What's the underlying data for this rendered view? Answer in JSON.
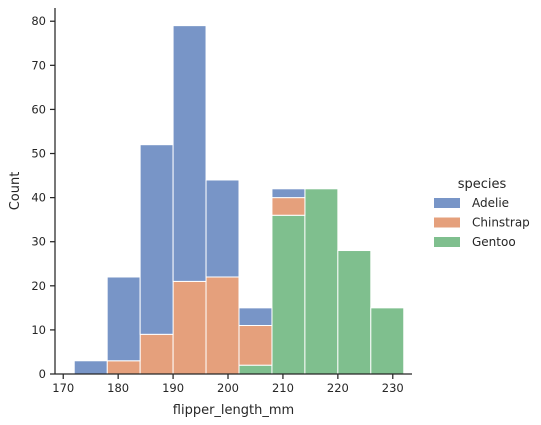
{
  "chart_data": {
    "type": "bar",
    "stacking": "stacked",
    "xlabel": "flipper_length_mm",
    "ylabel": "Count",
    "xlim": [
      168.5,
      233.5
    ],
    "ylim": [
      0,
      83
    ],
    "xticks": [
      170,
      180,
      190,
      200,
      210,
      220,
      230
    ],
    "yticks": [
      0,
      10,
      20,
      30,
      40,
      50,
      60,
      70,
      80
    ],
    "bin_edges": [
      172,
      178,
      184,
      190,
      196,
      202,
      208,
      214,
      220,
      226,
      232
    ],
    "series": [
      {
        "name": "Gentoo",
        "color": "#7fbf8e",
        "values": [
          0,
          0,
          0,
          0,
          0,
          2,
          36,
          42,
          28,
          15
        ]
      },
      {
        "name": "Chinstrap",
        "color": "#e5a07c",
        "values": [
          0,
          3,
          9,
          21,
          22,
          9,
          4,
          0,
          0,
          0
        ]
      },
      {
        "name": "Adelie",
        "color": "#7895c7",
        "values": [
          3,
          19,
          43,
          58,
          22,
          4,
          2,
          0,
          0,
          0
        ]
      }
    ],
    "legend": {
      "title": "species",
      "placement": "right",
      "order": [
        "Adelie",
        "Chinstrap",
        "Gentoo"
      ]
    },
    "grid": false
  }
}
